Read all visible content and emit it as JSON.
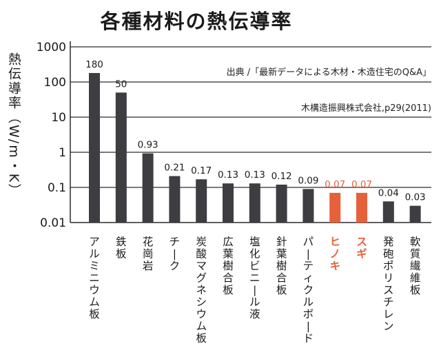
{
  "chart_data": {
    "type": "bar",
    "title": "各種材料の熱伝導率",
    "ylabel": "熱伝導率（W/m・K）",
    "yscale": "log",
    "ylim": [
      0.01,
      1000
    ],
    "yticks": [
      "1000",
      "100",
      "10",
      "1",
      "0.1",
      "0.01"
    ],
    "source_lines": [
      "出典 /「最新データによる木材・木造住宅のQ&A」",
      "木構造振興株式会社,p29(2011)"
    ],
    "categories": [
      "アルミニウム板",
      "鉄板",
      "花崗岩",
      "チーク",
      "炭酸マグネシウム板",
      "広葉樹合板",
      "塩化ビニール液",
      "針葉樹合板",
      "パーティクルボード",
      "ヒノキ",
      "スギ",
      "発砲ポリスチレン",
      "軟質繊維板"
    ],
    "values": [
      180,
      50,
      0.93,
      0.21,
      0.17,
      0.13,
      0.13,
      0.12,
      0.09,
      0.07,
      0.07,
      0.04,
      0.03
    ],
    "value_labels": [
      "180",
      "50",
      "0.93",
      "0.21",
      "0.17",
      "0.13",
      "0.13",
      "0.12",
      "0.09",
      "0.07",
      "0.07",
      "0.04",
      "0.03"
    ],
    "highlight": [
      false,
      false,
      false,
      false,
      false,
      false,
      false,
      false,
      false,
      true,
      true,
      false,
      false
    ],
    "colors": {
      "bar": "#3d3d42",
      "highlight": "#e6603a",
      "grid": "#2a2a2a"
    }
  }
}
